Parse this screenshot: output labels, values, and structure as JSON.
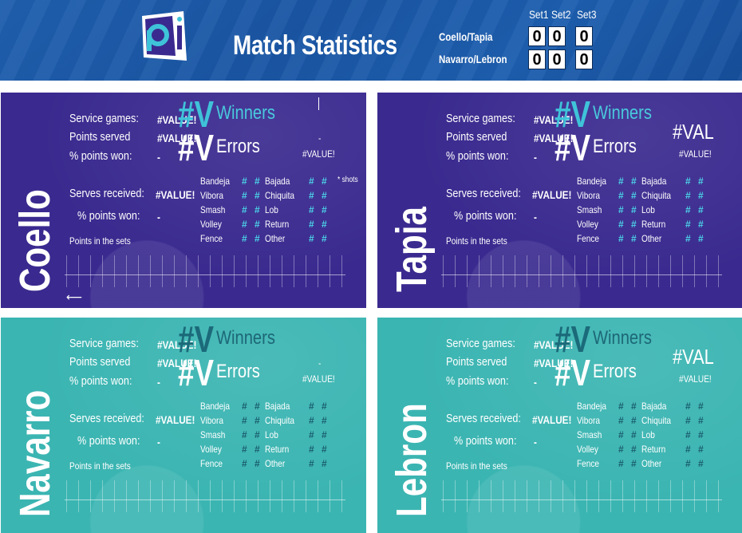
{
  "header": {
    "title": "Match Statistics",
    "sets": [
      "Set1",
      "Set2",
      "Set3"
    ],
    "teams": [
      {
        "name": "Coello/Tapia",
        "scores": [
          "0",
          "0",
          "0"
        ]
      },
      {
        "name": "Navarro/Lebron",
        "scores": [
          "0",
          "0",
          "0"
        ]
      }
    ]
  },
  "labels": {
    "service_games": "Service games:",
    "points_served": "Points served",
    "pct_points_won": "% points won:",
    "serves_received": "Serves received:",
    "pct_points_won2": "% points won:",
    "points_in_sets": "Points in the sets",
    "winners": "Winners",
    "errors": "Errors",
    "shots_note": "* shots",
    "bandeja": "Bandeja",
    "vibora": "Vibora",
    "smash": "Smash",
    "volley": "Volley",
    "fence": "Fence",
    "bajada": "Bajada",
    "chiquita": "Chiquita",
    "lob": "Lob",
    "return": "Return",
    "other": "Other"
  },
  "players": [
    {
      "name": "Coello",
      "service_games": "#VALUE!",
      "points_served": "#VALUE!",
      "pct_won": "-",
      "serves_received": "#VALUE!",
      "pct_won2": "-",
      "winners_v": "#V",
      "errors_v": "#V",
      "side_value": "#VALUE!",
      "side_big": "",
      "dash": "-"
    },
    {
      "name": "Tapia",
      "service_games": "#VALUE!",
      "points_served": "#VALUE!",
      "pct_won": "-",
      "serves_received": "#VALUE!",
      "pct_won2": "-",
      "winners_v": "#V",
      "errors_v": "#V",
      "side_value": "#VALUE!",
      "side_big": "#VAL",
      "dash": ""
    },
    {
      "name": "Navarro",
      "service_games": "#VALUE!",
      "points_served": "#VALUE!",
      "pct_won": "-",
      "serves_received": "#VALUE!",
      "pct_won2": "-",
      "winners_v": "#V",
      "errors_v": "#V",
      "side_value": "#VALUE!",
      "side_big": "",
      "dash": "-"
    },
    {
      "name": "Lebron",
      "service_games": "#VALUE!",
      "points_served": "#VALUE!",
      "pct_won": "-",
      "serves_received": "#VALUE!",
      "pct_won2": "-",
      "winners_v": "#V",
      "errors_v": "#V",
      "side_value": "#VALUE!",
      "side_big": "#VAL",
      "dash": ""
    }
  ],
  "hash_mark": "#",
  "colors": {
    "header_blue": "#1f5fae",
    "purple_panel": "#3a2a8f",
    "teal_panel": "#3bb5b2",
    "cyan_accent": "#3fc3d9"
  },
  "icons": {
    "logo": "padel-p-logo-icon",
    "arrow": "left-arrow-icon"
  }
}
